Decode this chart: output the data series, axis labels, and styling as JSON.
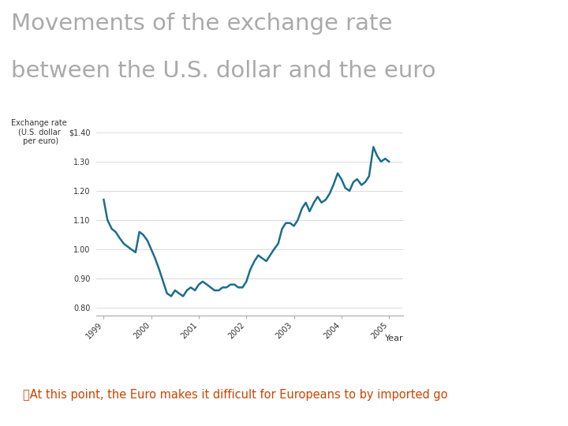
{
  "title_line1": "Movements of the exchange rate",
  "title_line2": "between the U.S. dollar and the euro",
  "title_color": "#aaaaaa",
  "ylabel_text": "Exchange rate\n(U.S. dollar\n per euro)",
  "xlabel": "Year",
  "line_color": "#1a6e8e",
  "line_width": 1.8,
  "background_color": "#ffffff",
  "border_color": "#cccccc",
  "ylim": [
    0.775,
    1.43
  ],
  "yticks": [
    0.8,
    0.9,
    1.0,
    1.1,
    1.2,
    1.3,
    1.4
  ],
  "ytick_labels": [
    "0.80",
    "0.90",
    "1.00",
    "1.10",
    "1.20",
    "1.30",
    "$1.40"
  ],
  "xtick_labels": [
    "1999",
    "2000",
    "2001",
    "2002",
    "2003",
    "2004",
    "2005"
  ],
  "footer_text": "⎙At this point, the Euro makes it difficult for Europeans to by imported go",
  "footer_color": "#cc4400",
  "x_data": [
    0,
    0.08,
    0.17,
    0.25,
    0.33,
    0.42,
    0.5,
    0.58,
    0.67,
    0.75,
    0.83,
    0.92,
    1.0,
    1.08,
    1.17,
    1.25,
    1.33,
    1.42,
    1.5,
    1.58,
    1.67,
    1.75,
    1.83,
    1.92,
    2.0,
    2.08,
    2.17,
    2.25,
    2.33,
    2.42,
    2.5,
    2.58,
    2.67,
    2.75,
    2.83,
    2.92,
    3.0,
    3.08,
    3.17,
    3.25,
    3.33,
    3.42,
    3.5,
    3.58,
    3.67,
    3.75,
    3.83,
    3.92,
    4.0,
    4.08,
    4.17,
    4.25,
    4.33,
    4.42,
    4.5,
    4.58,
    4.67,
    4.75,
    4.83,
    4.92,
    5.0,
    5.08,
    5.17,
    5.25,
    5.33,
    5.42,
    5.5,
    5.58,
    5.67,
    5.75,
    5.83,
    5.92,
    6.0
  ],
  "y_data": [
    1.17,
    1.1,
    1.07,
    1.06,
    1.04,
    1.02,
    1.01,
    1.0,
    0.99,
    1.06,
    1.05,
    1.03,
    1.0,
    0.97,
    0.93,
    0.89,
    0.85,
    0.84,
    0.86,
    0.85,
    0.84,
    0.86,
    0.87,
    0.86,
    0.88,
    0.89,
    0.88,
    0.87,
    0.86,
    0.86,
    0.87,
    0.87,
    0.88,
    0.88,
    0.87,
    0.87,
    0.89,
    0.93,
    0.96,
    0.98,
    0.97,
    0.96,
    0.98,
    1.0,
    1.02,
    1.07,
    1.09,
    1.09,
    1.08,
    1.1,
    1.14,
    1.16,
    1.13,
    1.16,
    1.18,
    1.16,
    1.17,
    1.19,
    1.22,
    1.26,
    1.24,
    1.21,
    1.2,
    1.23,
    1.24,
    1.22,
    1.23,
    1.25,
    1.35,
    1.32,
    1.3,
    1.31,
    1.3
  ]
}
